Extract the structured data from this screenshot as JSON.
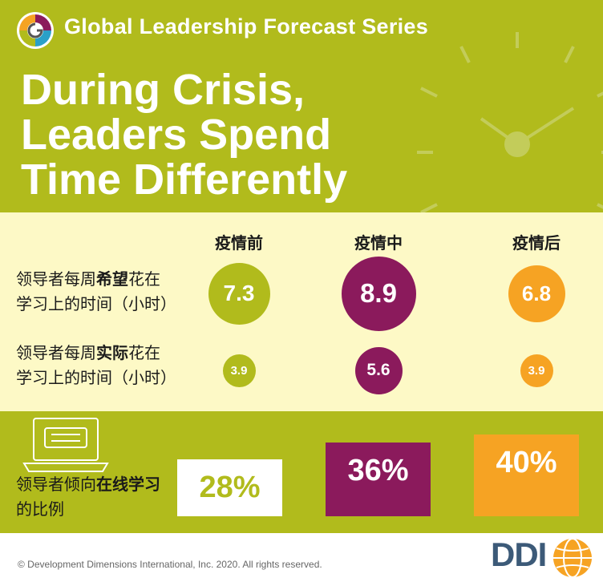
{
  "header": {
    "series_title": "Global Leadership Forecast Series",
    "headline": [
      "During Crisis,",
      "Leaders Spend",
      "Time Differently"
    ]
  },
  "chart_data": {
    "type": "bubble",
    "categories": [
      "疫情前",
      "疫情中",
      "疫情后"
    ],
    "series": [
      {
        "label_parts": [
          {
            "text": "领导者每周",
            "bold": false
          },
          {
            "text": "希望",
            "bold": true
          },
          {
            "text": "花在",
            "bold": false
          }
        ],
        "label_line2": "学习上的时间（小时）",
        "values": [
          7.3,
          8.9,
          6.8
        ],
        "value_labels": [
          "7.3",
          "8.9",
          "6.8"
        ]
      },
      {
        "label_parts": [
          {
            "text": "领导者每周",
            "bold": false
          },
          {
            "text": "实际",
            "bold": true
          },
          {
            "text": "花在",
            "bold": false
          }
        ],
        "label_line2": "学习上的时间（小时）",
        "values": [
          3.9,
          5.6,
          3.9
        ],
        "value_labels": [
          "3.9",
          "5.6",
          "3.9"
        ]
      }
    ],
    "online_learning": {
      "label_parts": [
        {
          "text": "领导者倾向",
          "bold": false
        },
        {
          "text": "在线学习",
          "bold": true
        }
      ],
      "label_line2": "的比例",
      "values_percent": [
        28,
        36,
        40
      ],
      "value_labels": [
        "28%",
        "36%",
        "40%"
      ]
    },
    "colors": [
      "#b1bb1c",
      "#8b1a5c",
      "#f6a323"
    ]
  },
  "footer": {
    "copyright": "© Development Dimensions International, Inc. 2020. All rights reserved.",
    "brand": "DDI"
  }
}
